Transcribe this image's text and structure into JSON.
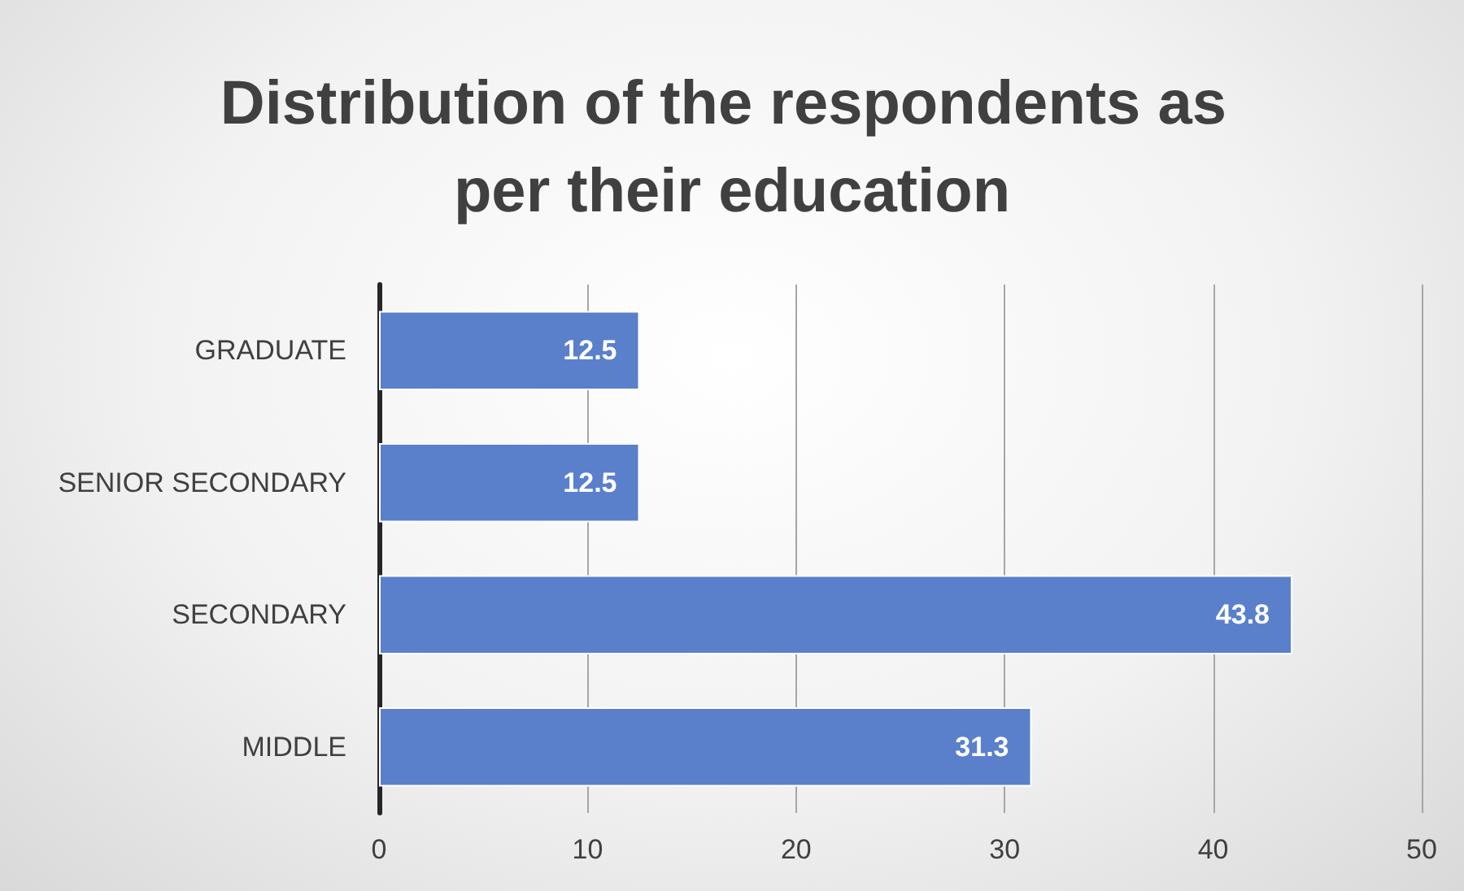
{
  "chart_data": {
    "type": "bar",
    "title": "Distribution of the respondents as per their education",
    "orientation": "horizontal",
    "categories": [
      "GRADUATE",
      "SENIOR SECONDARY",
      "SECONDARY",
      "MIDDLE"
    ],
    "values": [
      12.5,
      12.5,
      43.8,
      31.3
    ],
    "color": "#5a80cc",
    "xlim": [
      0,
      50
    ],
    "xticks": [
      0,
      10,
      20,
      30,
      40,
      50
    ],
    "grid": "x",
    "data_labels": true
  }
}
